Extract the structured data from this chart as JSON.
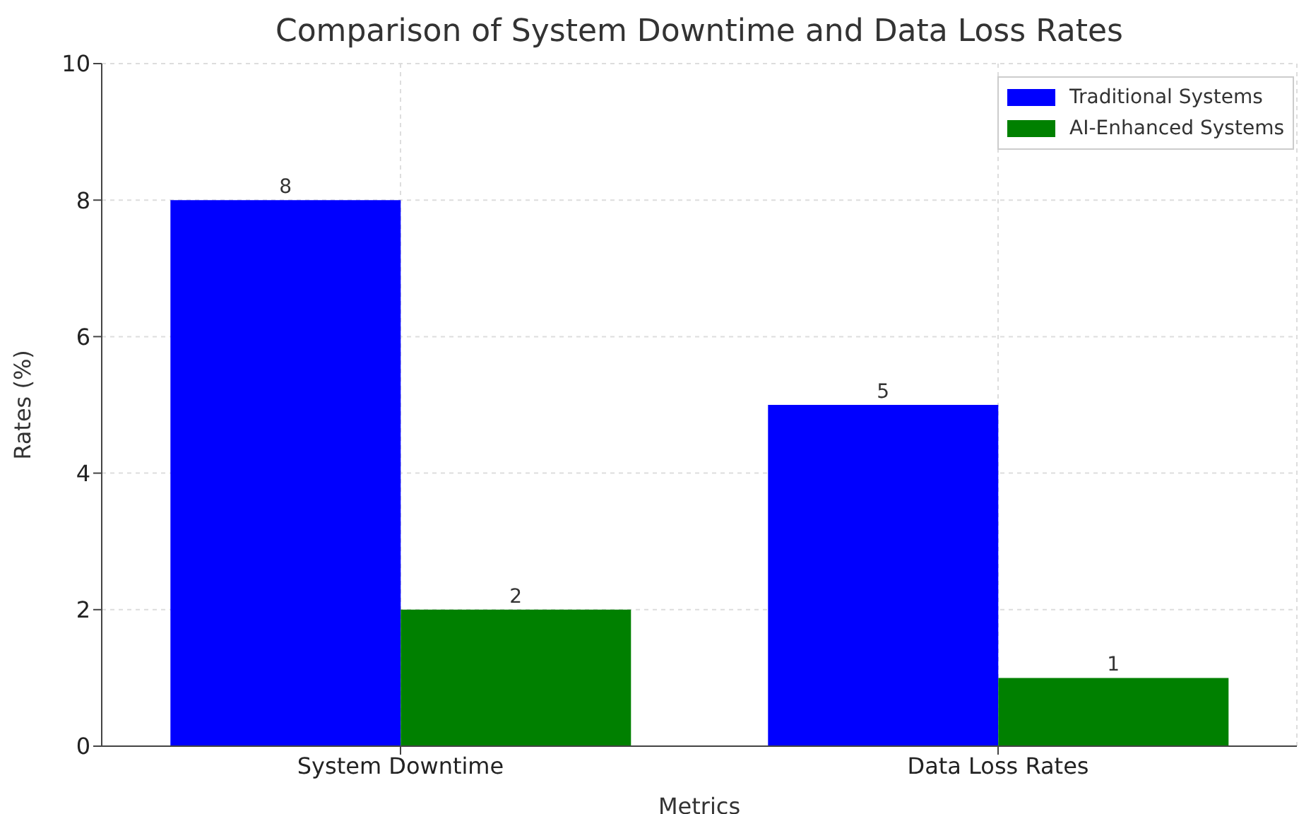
{
  "chart_data": {
    "type": "bar",
    "title": "Comparison of System Downtime and Data Loss Rates",
    "xlabel": "Metrics",
    "ylabel": "Rates (%)",
    "categories": [
      "System Downtime",
      "Data Loss Rates"
    ],
    "series": [
      {
        "name": "Traditional Systems",
        "color": "#0000ff",
        "values": [
          8,
          5
        ]
      },
      {
        "name": "AI-Enhanced Systems",
        "color": "#008000",
        "values": [
          2,
          1
        ]
      }
    ],
    "ylim": [
      0,
      10
    ],
    "yticks": [
      0,
      2,
      4,
      6,
      8,
      10
    ],
    "grid": true,
    "legend": "top right",
    "data_labels": true
  }
}
